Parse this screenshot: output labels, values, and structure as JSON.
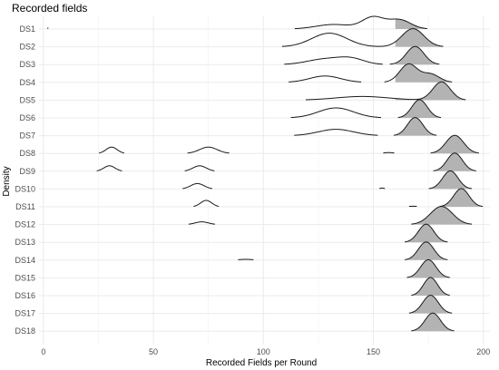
{
  "chart_data": {
    "type": "ridgeline",
    "title": "Recorded fields",
    "xlabel": "Recorded Fields per Round",
    "ylabel": "Density",
    "xlim": [
      -2,
      203
    ],
    "x_ticks": [
      "0",
      "50",
      "100",
      "150",
      "200"
    ],
    "x_tick_values": [
      0,
      50,
      100,
      150,
      200
    ],
    "grid": true,
    "fill_color": "#b3b3b3",
    "line_color": "#1a1a1a",
    "grid_color": "#ebebeb",
    "fill_note": "ridges shaded for x >= 160",
    "fill_from": 160,
    "categories": [
      "DS1",
      "DS2",
      "DS3",
      "DS4",
      "DS5",
      "DS6",
      "DS7",
      "DS8",
      "DS9",
      "DS10",
      "DS11",
      "DS12",
      "DS13",
      "DS14",
      "DS15",
      "DS16",
      "DS17",
      "DS18"
    ],
    "series": [
      {
        "name": "DS1",
        "components": [
          {
            "mean": 2,
            "sd": 0.3,
            "peak": 0.05
          },
          {
            "mean": 132,
            "sd": 8,
            "peak": 0.25
          },
          {
            "mean": 150,
            "sd": 5,
            "peak": 0.65
          },
          {
            "mean": 162,
            "sd": 5,
            "peak": 0.5
          }
        ]
      },
      {
        "name": "DS2",
        "components": [
          {
            "mean": 130,
            "sd": 8,
            "peak": 0.75
          },
          {
            "mean": 168,
            "sd": 5,
            "peak": 1.0
          }
        ]
      },
      {
        "name": "DS3",
        "components": [
          {
            "mean": 128,
            "sd": 8,
            "peak": 0.3
          },
          {
            "mean": 140,
            "sd": 6,
            "peak": 0.3
          },
          {
            "mean": 169,
            "sd": 4,
            "peak": 1.0
          }
        ]
      },
      {
        "name": "DS4",
        "components": [
          {
            "mean": 128,
            "sd": 7,
            "peak": 0.35
          },
          {
            "mean": 166,
            "sd": 4,
            "peak": 1.0
          },
          {
            "mean": 176,
            "sd": 4,
            "peak": 0.45
          }
        ]
      },
      {
        "name": "DS5",
        "components": [
          {
            "mean": 145,
            "sd": 12,
            "peak": 0.2
          },
          {
            "mean": 181,
            "sd": 4,
            "peak": 1.0
          }
        ]
      },
      {
        "name": "DS6",
        "components": [
          {
            "mean": 133,
            "sd": 8,
            "peak": 0.55
          },
          {
            "mean": 171,
            "sd": 3.5,
            "peak": 1.0
          }
        ]
      },
      {
        "name": "DS7",
        "components": [
          {
            "mean": 133,
            "sd": 8,
            "peak": 0.35
          },
          {
            "mean": 169,
            "sd": 3.5,
            "peak": 1.0
          }
        ]
      },
      {
        "name": "DS8",
        "components": [
          {
            "mean": 31,
            "sd": 2.5,
            "peak": 0.35
          },
          {
            "mean": 75,
            "sd": 4,
            "peak": 0.35
          },
          {
            "mean": 157,
            "sd": 2,
            "peak": 0.05
          },
          {
            "mean": 187,
            "sd": 4,
            "peak": 1.0
          }
        ]
      },
      {
        "name": "DS9",
        "components": [
          {
            "mean": 30,
            "sd": 2.5,
            "peak": 0.3
          },
          {
            "mean": 71,
            "sd": 3,
            "peak": 0.3
          },
          {
            "mean": 187,
            "sd": 3.5,
            "peak": 1.0
          }
        ]
      },
      {
        "name": "DS10",
        "components": [
          {
            "mean": 70,
            "sd": 3,
            "peak": 0.3
          },
          {
            "mean": 154,
            "sd": 1,
            "peak": 0.05
          },
          {
            "mean": 185,
            "sd": 3.5,
            "peak": 1.0
          }
        ]
      },
      {
        "name": "DS11",
        "components": [
          {
            "mean": 74,
            "sd": 2.5,
            "peak": 0.35
          },
          {
            "mean": 168,
            "sd": 2,
            "peak": 0.03
          },
          {
            "mean": 190,
            "sd": 3.5,
            "peak": 1.0
          }
        ]
      },
      {
        "name": "DS12",
        "components": [
          {
            "mean": 72,
            "sd": 3,
            "peak": 0.15
          },
          {
            "mean": 181,
            "sd": 5,
            "peak": 1.0
          }
        ]
      },
      {
        "name": "DS13",
        "components": [
          {
            "mean": 174,
            "sd": 3.5,
            "peak": 1.0
          }
        ]
      },
      {
        "name": "DS14",
        "components": [
          {
            "mean": 92,
            "sd": 3,
            "peak": 0.04
          },
          {
            "mean": 174,
            "sd": 3.5,
            "peak": 1.0
          }
        ]
      },
      {
        "name": "DS15",
        "components": [
          {
            "mean": 175,
            "sd": 3.5,
            "peak": 1.0
          }
        ]
      },
      {
        "name": "DS16",
        "components": [
          {
            "mean": 176,
            "sd": 3.2,
            "peak": 1.0
          }
        ]
      },
      {
        "name": "DS17",
        "components": [
          {
            "mean": 176,
            "sd": 3.5,
            "peak": 1.0
          }
        ]
      },
      {
        "name": "DS18",
        "components": [
          {
            "mean": 177,
            "sd": 3.5,
            "peak": 1.0
          }
        ]
      }
    ]
  }
}
